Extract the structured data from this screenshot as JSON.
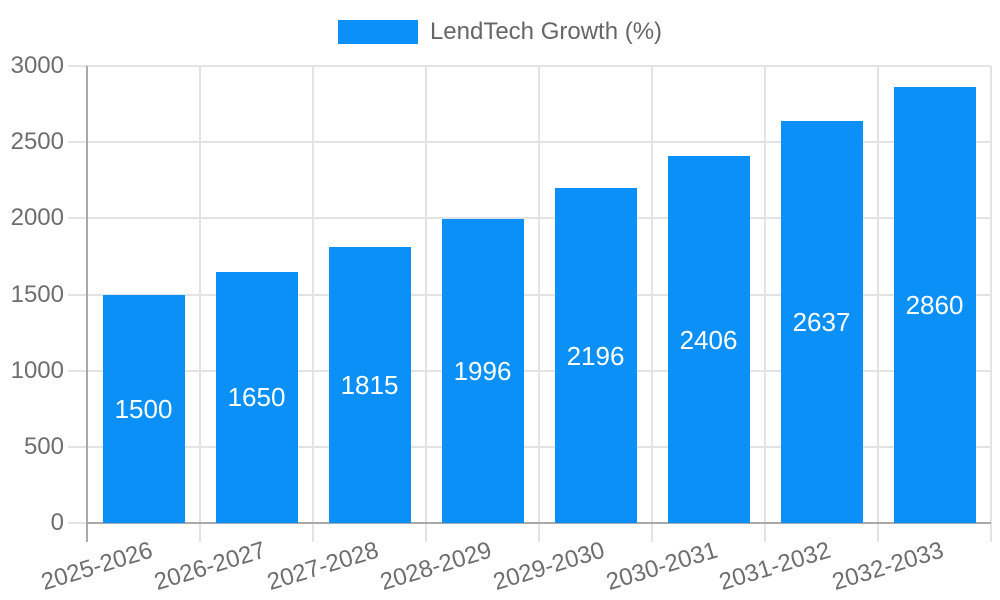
{
  "chart_data": {
    "type": "bar",
    "title": "",
    "xlabel": "",
    "ylabel": "",
    "legend": {
      "label": "LendTech Growth (%)",
      "position": "top"
    },
    "categories": [
      "2025-2026",
      "2026-2027",
      "2027-2028",
      "2028-2029",
      "2029-2030",
      "2030-2031",
      "2031-2032",
      "2032-2033"
    ],
    "series": [
      {
        "name": "LendTech Growth (%)",
        "values": [
          1500,
          1650,
          1815,
          1996,
          2196,
          2406,
          2637,
          2860
        ]
      }
    ],
    "value_labels": [
      "1500",
      "1650",
      "1815",
      "1996",
      "2196",
      "2406",
      "2637",
      "2860"
    ],
    "value_label_position": "inside-center",
    "ylim": [
      0,
      3000
    ],
    "yticks": [
      "0",
      "500",
      "1000",
      "1500",
      "2000",
      "2500",
      "3000"
    ],
    "grid": "both",
    "colors": {
      "bar": "#0a90f7",
      "value_label": "#ffffff",
      "gridline": "#e3e3e3",
      "axis_line": "#a9a9a9",
      "tick_text": "#6e6e6e",
      "legend_text": "#666666",
      "background": "#ffffff"
    }
  }
}
